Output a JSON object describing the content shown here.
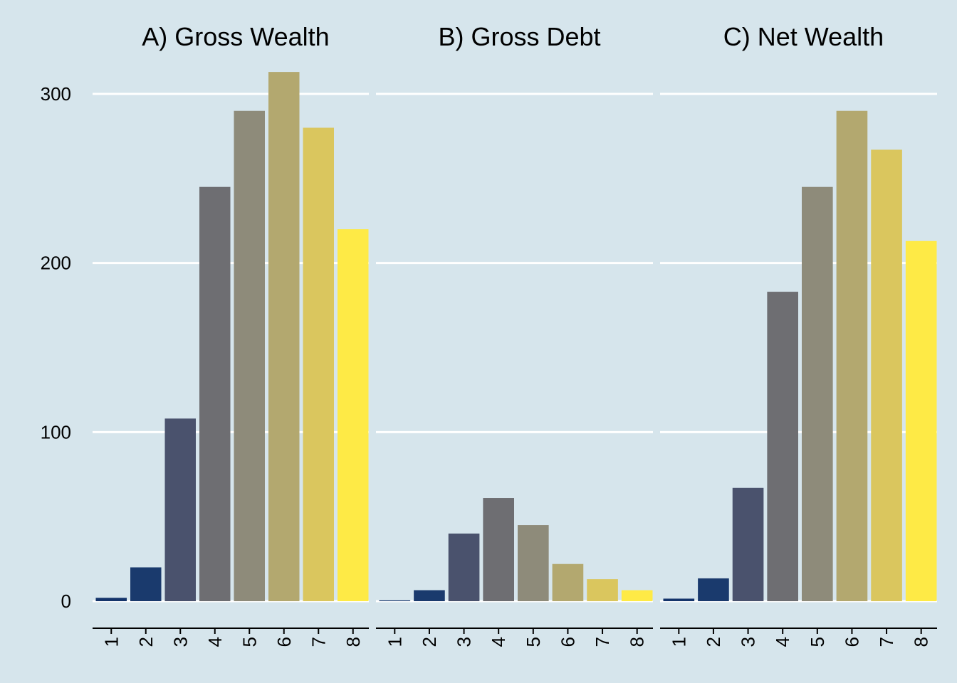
{
  "chart_data": [
    {
      "type": "bar",
      "title": "A) Gross Wealth",
      "categories": [
        "1",
        "2",
        "3",
        "4",
        "5",
        "6",
        "7",
        "8"
      ],
      "values": [
        2,
        20,
        108,
        245,
        290,
        313,
        280,
        220
      ],
      "ylim": [
        0,
        320
      ],
      "yticks": [
        0,
        100,
        200,
        300
      ],
      "grid": true
    },
    {
      "type": "bar",
      "title": "B) Gross Debt",
      "categories": [
        "1",
        "2",
        "3",
        "4",
        "5",
        "6",
        "7",
        "8"
      ],
      "values": [
        0.5,
        6.5,
        40,
        61,
        45,
        22,
        13,
        6.5
      ],
      "ylim": [
        0,
        320
      ],
      "yticks": [
        0,
        100,
        200,
        300
      ],
      "grid": true
    },
    {
      "type": "bar",
      "title": "C) Net Wealth",
      "categories": [
        "1",
        "2",
        "3",
        "4",
        "5",
        "6",
        "7",
        "8"
      ],
      "values": [
        1.5,
        13.5,
        67,
        183,
        245,
        290,
        267,
        213
      ],
      "ylim": [
        0,
        320
      ],
      "yticks": [
        0,
        100,
        200,
        300
      ],
      "grid": true
    }
  ],
  "colors": {
    "background": "#d6e5ec",
    "gridline": "#ffffff",
    "axis": "#000000",
    "bars": [
      "#14346b",
      "#1a3a6d",
      "#4a526d",
      "#6e6e72",
      "#8e8b7a",
      "#b3a86f",
      "#dac65e",
      "#feea46"
    ]
  }
}
